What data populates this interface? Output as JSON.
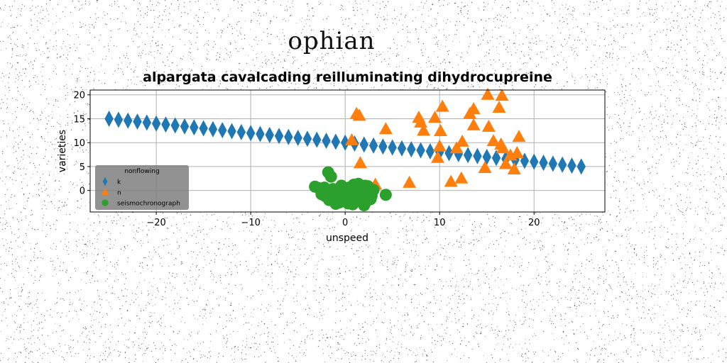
{
  "page": {
    "suptitle": "ophian"
  },
  "chart_data": {
    "type": "scatter",
    "title": "alpargata cavalcading reilluminating dihydrocupreine",
    "xlabel": "unspeed",
    "ylabel": "varieties",
    "xlim": [
      -27,
      27.5
    ],
    "ylim": [
      -4.5,
      21
    ],
    "xticks": [
      -20,
      -10,
      0,
      10,
      20
    ],
    "yticks": [
      0,
      5,
      10,
      15,
      20
    ],
    "xtick_labels": [
      "−20",
      "−10",
      "0",
      "10",
      "20"
    ],
    "ytick_labels": [
      "0",
      "5",
      "10",
      "15",
      "20"
    ],
    "grid": true,
    "legend": {
      "title": "nonflowing",
      "placement": "lower-left"
    },
    "series": [
      {
        "name": "k",
        "marker": "diamond",
        "color": "#1f77b4",
        "x": [
          -25.0,
          -24.0,
          -23.0,
          -22.0,
          -21.0,
          -20.0,
          -19.0,
          -18.0,
          -17.0,
          -16.0,
          -15.0,
          -14.0,
          -13.0,
          -12.0,
          -11.0,
          -10.0,
          -9.0,
          -8.0,
          -7.0,
          -6.0,
          -5.0,
          -4.0,
          -3.0,
          -2.0,
          -1.0,
          0.0,
          1.0,
          2.0,
          3.0,
          4.0,
          5.0,
          6.0,
          7.0,
          8.0,
          9.0,
          10.0,
          11.0,
          12.0,
          13.0,
          14.0,
          15.0,
          16.0,
          17.0,
          18.0,
          19.0,
          20.0,
          21.0,
          22.0,
          23.0,
          24.0,
          25.0
        ],
        "y": [
          15.0,
          14.8,
          14.6,
          14.4,
          14.2,
          14.0,
          13.8,
          13.6,
          13.4,
          13.2,
          13.0,
          12.8,
          12.6,
          12.4,
          12.2,
          12.0,
          11.8,
          11.6,
          11.4,
          11.2,
          11.0,
          10.8,
          10.6,
          10.4,
          10.2,
          10.0,
          9.8,
          9.6,
          9.4,
          9.2,
          9.0,
          8.8,
          8.6,
          8.4,
          8.2,
          8.0,
          7.8,
          7.6,
          7.4,
          7.2,
          7.0,
          6.8,
          6.6,
          6.4,
          6.2,
          6.0,
          5.8,
          5.6,
          5.4,
          5.2,
          5.0
        ]
      },
      {
        "name": "n",
        "marker": "triangle",
        "color": "#ff7f0e",
        "x": [
          1.2,
          1.5,
          0.7,
          1.6,
          4.3,
          3.2,
          6.8,
          7.8,
          8.3,
          8.0,
          9.5,
          10.3,
          10.1,
          10.0,
          9.8,
          11.2,
          11.8,
          12.3,
          12.4,
          13.2,
          13.6,
          13.6,
          14.8,
          15.1,
          15.2,
          15.7,
          16.3,
          16.6,
          16.5,
          16.7,
          17.0,
          17.5,
          17.9,
          18.2,
          18.4
        ],
        "y": [
          16.0,
          15.6,
          10.5,
          5.7,
          12.8,
          1.2,
          1.6,
          15.2,
          12.5,
          14.2,
          15.2,
          17.5,
          12.4,
          9.2,
          6.8,
          1.8,
          8.8,
          2.5,
          10.2,
          16.0,
          17.0,
          13.6,
          4.7,
          20.0,
          13.3,
          10.3,
          17.3,
          19.8,
          9.6,
          8.8,
          5.5,
          7.3,
          4.4,
          7.8,
          11.2
        ]
      },
      {
        "name": "seismochronograph",
        "marker": "circle",
        "color": "#2ca02c",
        "x": [
          -3.2,
          -2.8,
          -2.5,
          -2.1,
          -1.8,
          -1.5,
          -1.3,
          -1.0,
          -0.9,
          -0.6,
          -0.4,
          -0.2,
          0.0,
          0.2,
          0.4,
          0.6,
          0.8,
          1.0,
          1.2,
          1.4,
          1.6,
          1.8,
          2.0,
          2.2,
          2.4,
          2.6,
          2.8,
          3.0,
          -1.7,
          -0.8,
          0.3,
          1.1,
          2.1,
          -2.2,
          4.3,
          1.7,
          -0.5,
          0.9,
          -1.2,
          2.7
        ],
        "y": [
          0.8,
          0.5,
          -0.8,
          -1.2,
          3.8,
          2.9,
          0.3,
          -2.8,
          -1.3,
          -2.5,
          1.0,
          0.2,
          -1.0,
          -0.3,
          0.6,
          -1.8,
          -2.9,
          0.2,
          -0.7,
          1.4,
          0.5,
          -1.5,
          -3.1,
          -2.4,
          0.9,
          -0.2,
          -1.1,
          0.1,
          -2.0,
          -0.8,
          -2.7,
          -0.4,
          1.0,
          0.6,
          -0.9,
          -2.2,
          0.0,
          1.2,
          -0.1,
          -1.8
        ]
      }
    ]
  }
}
